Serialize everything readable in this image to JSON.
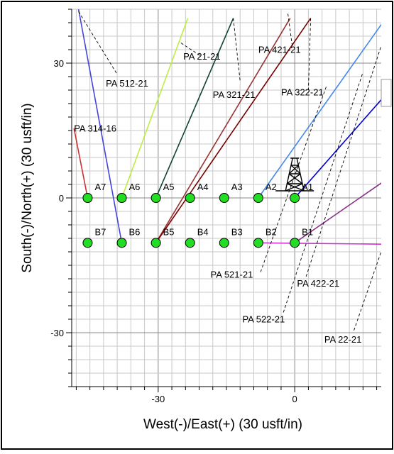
{
  "chart_data": {
    "type": "scatter",
    "xlabel": "West(-)/East(+) (30 usft/in)",
    "ylabel": "South(-)/North(+) (30 usft/in)",
    "xlim": [
      -49,
      19
    ],
    "ylim": [
      -42,
      42
    ],
    "grid": true,
    "x_ticks": [
      {
        "value": -30,
        "label": "-30"
      },
      {
        "value": 0,
        "label": "0"
      }
    ],
    "y_ticks": [
      {
        "value": 30,
        "label": "30"
      },
      {
        "value": 0,
        "label": "0"
      },
      {
        "value": -30,
        "label": "-30"
      }
    ],
    "marker_color": "#22dd22",
    "points": [
      {
        "label": "A7",
        "x": -45.5,
        "y": 0
      },
      {
        "label": "A6",
        "x": -38,
        "y": 0
      },
      {
        "label": "A5",
        "x": -30.5,
        "y": 0
      },
      {
        "label": "A4",
        "x": -23,
        "y": 0
      },
      {
        "label": "A3",
        "x": -15.5,
        "y": 0
      },
      {
        "label": "A2",
        "x": -8,
        "y": 0
      },
      {
        "label": "A1",
        "x": 0,
        "y": 0
      },
      {
        "label": "B7",
        "x": -45.5,
        "y": -10
      },
      {
        "label": "B6",
        "x": -38,
        "y": -10
      },
      {
        "label": "B5",
        "x": -30.5,
        "y": -10
      },
      {
        "label": "B4",
        "x": -23,
        "y": -10
      },
      {
        "label": "B3",
        "x": -15.5,
        "y": -10
      },
      {
        "label": "B2",
        "x": -8,
        "y": -10
      },
      {
        "label": "B1",
        "x": 0,
        "y": -10
      }
    ],
    "trajectories": [
      {
        "color": "#cc3333",
        "x": [
          -45.5,
          -48.5
        ],
        "y": [
          0,
          15.5
        ]
      },
      {
        "color": "#4444dd",
        "x": [
          -38,
          -47.5
        ],
        "y": [
          -10,
          42
        ]
      },
      {
        "color": "#bbee44",
        "x": [
          -38,
          -23.5
        ],
        "y": [
          0,
          40
        ]
      },
      {
        "color": "#114433",
        "x": [
          -30.5,
          -13.5
        ],
        "y": [
          0,
          40
        ]
      },
      {
        "color": "#993333",
        "x": [
          -30.5,
          -1
        ],
        "y": [
          -10,
          40
        ]
      },
      {
        "color": "#770000",
        "x": [
          -30.5,
          3.5
        ],
        "y": [
          -10,
          40
        ]
      },
      {
        "color": "#4488ee",
        "x": [
          -8,
          20
        ],
        "y": [
          0,
          40
        ]
      },
      {
        "color": "#0000cc",
        "x": [
          0,
          20
        ],
        "y": [
          0,
          23
        ]
      },
      {
        "color": "#883388",
        "x": [
          0,
          20
        ],
        "y": [
          -10,
          4
        ]
      },
      {
        "color": "#cc33cc",
        "x": [
          -8,
          20
        ],
        "y": [
          -10,
          -10.3
        ]
      }
    ],
    "plan_labels": [
      {
        "text": "PA 512-21",
        "x": -41.5,
        "y": 24.8,
        "lx": [
          -47.5,
          -39
        ],
        "ly": [
          41.5,
          27.5
        ]
      },
      {
        "text": "PA 21-21",
        "x": -24.5,
        "y": 30.8,
        "lx": [
          -25,
          -20.5
        ],
        "ly": [
          34.5,
          31.5
        ]
      },
      {
        "text": "PA 421-21",
        "x": -8,
        "y": 32.3,
        "lx": [
          -1.5,
          -0.5
        ],
        "ly": [
          41,
          33.5
        ]
      },
      {
        "text": "PA 321-21",
        "x": -18,
        "y": 22.3,
        "lx": [
          -13.5,
          -12
        ],
        "ly": [
          40,
          26
        ]
      },
      {
        "text": "PA 322-21",
        "x": -3,
        "y": 22.8,
        "lx": [
          3.5,
          3
        ],
        "ly": [
          40,
          24
        ]
      },
      {
        "text": "PA 314-16",
        "x": -48.5,
        "y": 14.8,
        "lx": [],
        "ly": []
      },
      {
        "text": "PA 521-21",
        "x": -18.5,
        "y": -17.8,
        "lx": [
          -7.5,
          7
        ],
        "ly": [
          -16.5,
          25
        ]
      },
      {
        "text": "PA 422-21",
        "x": 0.5,
        "y": -19.7,
        "lx": [
          2.5,
          20
        ],
        "ly": [
          -17.5,
          37
        ]
      },
      {
        "text": "PA 522-21",
        "x": -11.5,
        "y": -27.7,
        "lx": [
          -2.5,
          15
        ],
        "ly": [
          -25.5,
          28
        ]
      },
      {
        "text": "PA 22-21",
        "x": 6.5,
        "y": -32.2,
        "lx": [
          13,
          20
        ],
        "ly": [
          -29.5,
          -9
        ]
      }
    ],
    "rig": {
      "x": 0,
      "y": 0
    }
  }
}
